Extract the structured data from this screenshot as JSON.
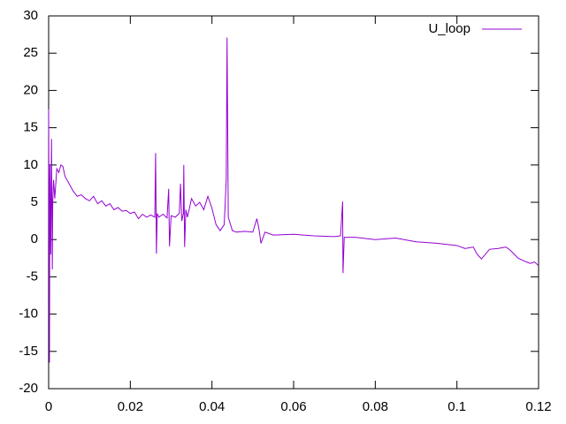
{
  "chart_data": {
    "type": "line",
    "xlim": [
      0,
      0.12
    ],
    "xticks": [
      0,
      0.02,
      0.04,
      0.06,
      0.08,
      0.1,
      0.12
    ],
    "ylim": [
      -20,
      30
    ],
    "yticks": [
      -20,
      -15,
      -10,
      -5,
      0,
      5,
      10,
      15,
      20,
      25,
      30
    ],
    "grid": false,
    "legend": "top-right",
    "x": [
      0,
      0.0002,
      0.0003,
      0.0005,
      0.0007,
      0.0009,
      0.001,
      0.0012,
      0.0015,
      0.002,
      0.0025,
      0.003,
      0.0035,
      0.004,
      0.0045,
      0.005,
      0.006,
      0.007,
      0.008,
      0.009,
      0.01,
      0.011,
      0.012,
      0.013,
      0.014,
      0.015,
      0.016,
      0.017,
      0.018,
      0.019,
      0.02,
      0.021,
      0.022,
      0.023,
      0.024,
      0.025,
      0.026,
      0.0262,
      0.0264,
      0.0266,
      0.027,
      0.028,
      0.029,
      0.0294,
      0.0296,
      0.03,
      0.031,
      0.032,
      0.0323,
      0.0326,
      0.033,
      0.0331,
      0.0333,
      0.0336,
      0.034,
      0.035,
      0.036,
      0.037,
      0.038,
      0.039,
      0.04,
      0.041,
      0.042,
      0.043,
      0.0435,
      0.0437,
      0.044,
      0.045,
      0.046,
      0.048,
      0.05,
      0.051,
      0.0515,
      0.052,
      0.053,
      0.055,
      0.06,
      0.065,
      0.07,
      0.0715,
      0.072,
      0.0721,
      0.0724,
      0.075,
      0.08,
      0.085,
      0.09,
      0.095,
      0.1,
      0.102,
      0.104,
      0.105,
      0.106,
      0.108,
      0.11,
      0.112,
      0.113,
      0.115,
      0.117,
      0.118,
      0.119,
      0.12
    ],
    "series": [
      {
        "name": "U_loop",
        "color": "#9400d3",
        "values": [
          17.5,
          -16.5,
          10,
          -2,
          13.5,
          -4,
          5,
          8,
          5.5,
          9.5,
          9,
          10,
          9.8,
          8.5,
          8,
          7.5,
          6.5,
          5.8,
          6,
          5.5,
          5.2,
          5.8,
          4.8,
          5.2,
          4.5,
          4.8,
          4,
          4.3,
          3.8,
          3.9,
          3.5,
          3.7,
          2.8,
          3.4,
          3,
          3.3,
          3,
          11.6,
          -1.9,
          3.5,
          3,
          3.4,
          2.9,
          6.8,
          -0.9,
          3.2,
          3,
          3.5,
          7.5,
          2.5,
          3.5,
          10,
          -1,
          4,
          3,
          5.5,
          4.5,
          5,
          4,
          5.8,
          4.2,
          2,
          1.2,
          2,
          8,
          27.1,
          3,
          1.2,
          1,
          1.1,
          1,
          2.8,
          1.5,
          -0.5,
          1,
          0.6,
          0.7,
          0.5,
          0.4,
          0.5,
          5.1,
          -4.5,
          0.3,
          0.3,
          0,
          0.2,
          -0.3,
          -0.5,
          -0.8,
          -1.2,
          -1,
          -2,
          -2.6,
          -1.3,
          -1.2,
          -1,
          -1.4,
          -2.5,
          -3,
          -3.2,
          -3,
          -3.5
        ]
      }
    ]
  }
}
